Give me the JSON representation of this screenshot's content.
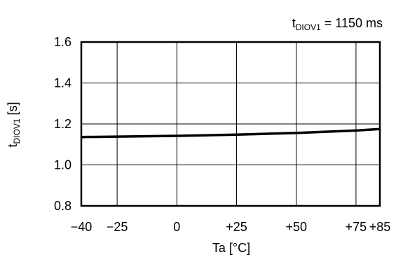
{
  "chart_data": {
    "type": "line",
    "annotation": {
      "prefix": "t",
      "subscript": "DIOV1",
      "suffix": " = 1150 ms"
    },
    "xlabel": "Ta [°C]",
    "ylabel": {
      "prefix": "t",
      "subscript": "DIOV1",
      "suffix": " [s]"
    },
    "xlim": [
      -40,
      85
    ],
    "ylim": [
      0.8,
      1.6
    ],
    "xticks": [
      {
        "value": -40,
        "label": "−40"
      },
      {
        "value": -25,
        "label": "−25"
      },
      {
        "value": 0,
        "label": "0"
      },
      {
        "value": 25,
        "label": "+25"
      },
      {
        "value": 50,
        "label": "+50"
      },
      {
        "value": 75,
        "label": "+75"
      },
      {
        "value": 85,
        "label": "+85"
      }
    ],
    "yticks": [
      {
        "value": 0.8,
        "label": "0.8"
      },
      {
        "value": 1.0,
        "label": "1.0"
      },
      {
        "value": 1.2,
        "label": "1.2"
      },
      {
        "value": 1.4,
        "label": "1.4"
      },
      {
        "value": 1.6,
        "label": "1.6"
      }
    ],
    "grid": true,
    "series": [
      {
        "x": [
          -40,
          -25,
          0,
          25,
          50,
          75,
          85
        ],
        "y": [
          1.136,
          1.138,
          1.142,
          1.148,
          1.156,
          1.168,
          1.175
        ]
      }
    ]
  }
}
